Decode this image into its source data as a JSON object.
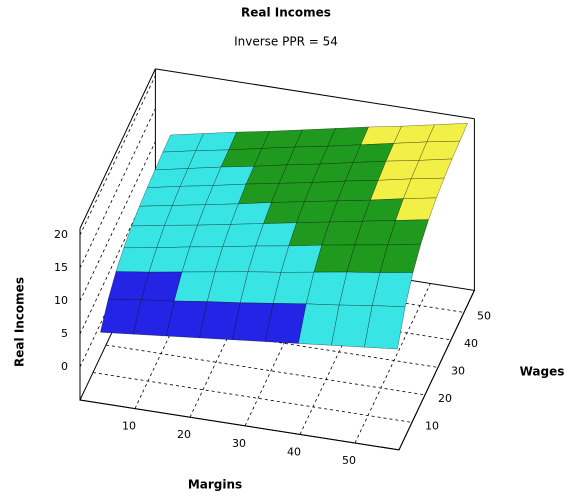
{
  "chart_data": {
    "type": "surface",
    "title": "Real Incomes",
    "subtitle": "Inverse PPR = 54",
    "x_label": "Margins",
    "y_label": "Wages",
    "z_label": "Real Incomes",
    "x": [
      3,
      9,
      15,
      21,
      27,
      33,
      39,
      45,
      51,
      57
    ],
    "y": [
      3,
      9,
      15,
      21,
      27,
      33,
      39,
      45,
      51,
      57
    ],
    "z": [
      [
        4.4,
        4.9,
        5.4,
        5.9,
        6.4,
        6.9,
        7.4,
        7.9,
        8.4,
        8.9
      ],
      [
        6.9,
        7.6,
        8.2,
        8.9,
        9.5,
        10.2,
        10.9,
        11.5,
        12.2,
        12.8
      ],
      [
        8.6,
        9.3,
        10.1,
        10.9,
        11.7,
        12.4,
        13.2,
        14.0,
        14.7,
        15.5
      ],
      [
        9.7,
        10.5,
        11.4,
        12.2,
        13.1,
        13.9,
        14.8,
        15.6,
        16.4,
        17.3
      ],
      [
        10.5,
        11.4,
        12.2,
        13.1,
        14.0,
        14.9,
        15.8,
        16.7,
        17.6,
        18.5
      ],
      [
        11.0,
        11.9,
        12.8,
        13.7,
        14.7,
        15.6,
        16.5,
        17.4,
        18.4,
        19.3
      ],
      [
        11.3,
        12.3,
        13.2,
        14.2,
        15.1,
        16.0,
        17.0,
        17.9,
        18.9,
        19.8
      ],
      [
        11.5,
        12.5,
        13.5,
        14.4,
        15.4,
        16.3,
        17.3,
        18.3,
        19.2,
        20.2
      ],
      [
        11.7,
        12.7,
        13.6,
        14.6,
        15.6,
        16.5,
        17.5,
        18.5,
        19.5,
        20.4
      ],
      [
        11.8,
        12.8,
        13.8,
        14.7,
        15.7,
        16.7,
        17.7,
        18.6,
        19.6,
        20.6
      ]
    ],
    "color_breaks": [
      9,
      14,
      18
    ],
    "colors": [
      "#2424e6",
      "#38e4e4",
      "#1f9a1f",
      "#f2f046"
    ],
    "xlim": [
      0,
      58
    ],
    "ylim": [
      0,
      58
    ],
    "zlim": [
      -5,
      21
    ],
    "xticks": [
      10,
      20,
      30,
      40,
      50
    ],
    "yticks": [
      10,
      20,
      30,
      40,
      50
    ],
    "zticks": [
      0,
      5,
      10,
      15,
      20
    ],
    "grid": true
  }
}
